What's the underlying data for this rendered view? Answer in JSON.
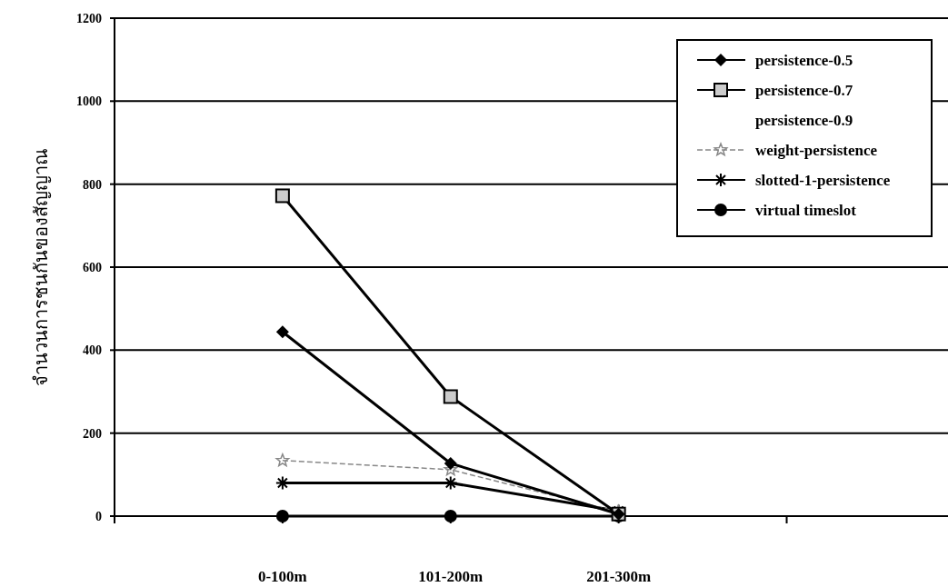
{
  "chart_data": {
    "type": "line",
    "ylabel": "จำนวนการชนกันของสัญญาณ",
    "categories": [
      "0-100m",
      "101-200m",
      "201-300m",
      null
    ],
    "ylim": [
      0,
      1200
    ],
    "yticks": [
      0,
      200,
      400,
      600,
      800,
      1000,
      1200
    ],
    "grid": "y",
    "legend": "top right",
    "series": [
      {
        "name": "persistence-0.5",
        "color": "#000000",
        "marker": "diamond",
        "values": [
          444,
          127,
          5,
          null
        ]
      },
      {
        "name": "persistence-0.7",
        "color": "#000000",
        "marker": "square",
        "values": [
          772,
          288,
          5,
          null
        ]
      },
      {
        "name": "persistence-0.9",
        "values": [
          null,
          null,
          null,
          null
        ]
      },
      {
        "name": "weight-persistence",
        "color": "#888888",
        "marker": "star",
        "line_style": "dashed",
        "values": [
          134,
          112,
          10,
          null
        ]
      },
      {
        "name": "slotted-1-persistence",
        "color": "#000000",
        "marker": "cross",
        "values": [
          80,
          80,
          12,
          null
        ]
      },
      {
        "name": "virtual timeslot",
        "color": "#000000",
        "marker": "circle",
        "values": [
          0,
          0,
          0,
          null
        ]
      }
    ]
  }
}
